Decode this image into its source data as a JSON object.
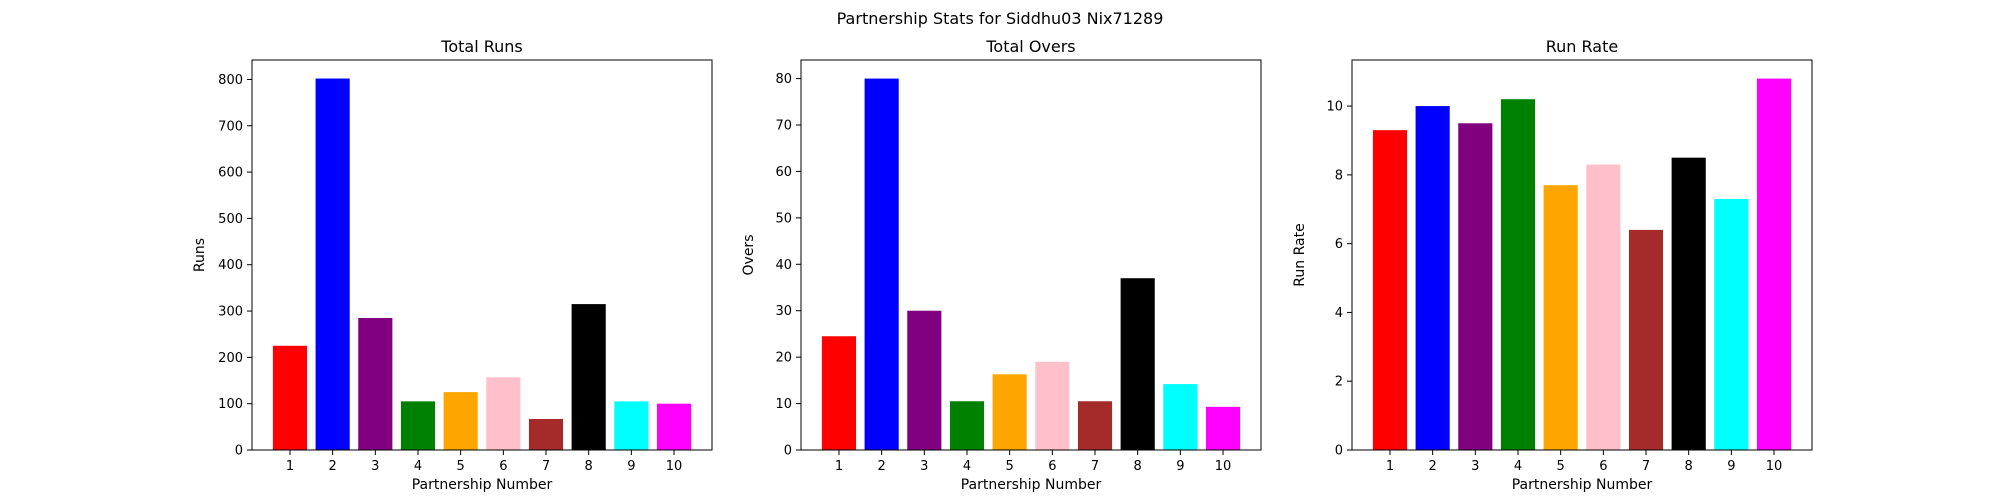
{
  "figure": {
    "suptitle": "Partnership Stats for Siddhu03 Nix71289"
  },
  "colors": [
    "#ff0000",
    "#0000ff",
    "#800080",
    "#008000",
    "#ffa500",
    "#ffc0cb",
    "#a52a2a",
    "#000000",
    "#00ffff",
    "#ff00ff"
  ],
  "chart_data": [
    {
      "type": "bar",
      "title": "Total Runs",
      "xlabel": "Partnership Number",
      "ylabel": "Runs",
      "categories": [
        "1",
        "2",
        "3",
        "4",
        "5",
        "6",
        "7",
        "8",
        "9",
        "10"
      ],
      "values": [
        225,
        802,
        285,
        105,
        125,
        157,
        67,
        315,
        105,
        100
      ],
      "ylim": [
        0,
        842
      ],
      "yticks": [
        0,
        100,
        200,
        300,
        400,
        500,
        600,
        700,
        800
      ],
      "grid": false
    },
    {
      "type": "bar",
      "title": "Total Overs",
      "xlabel": "Partnership Number",
      "ylabel": "Overs",
      "categories": [
        "1",
        "2",
        "3",
        "4",
        "5",
        "6",
        "7",
        "8",
        "9",
        "10"
      ],
      "values": [
        24.5,
        80,
        30,
        10.5,
        16.3,
        19,
        10.5,
        37,
        14.2,
        9.3
      ],
      "ylim": [
        0,
        84
      ],
      "yticks": [
        0,
        10,
        20,
        30,
        40,
        50,
        60,
        70,
        80
      ],
      "grid": false
    },
    {
      "type": "bar",
      "title": "Run Rate",
      "xlabel": "Partnership Number",
      "ylabel": "Run Rate",
      "categories": [
        "1",
        "2",
        "3",
        "4",
        "5",
        "6",
        "7",
        "8",
        "9",
        "10"
      ],
      "values": [
        9.3,
        10.0,
        9.5,
        10.2,
        7.7,
        8.3,
        6.4,
        8.5,
        7.3,
        10.8
      ],
      "ylim": [
        0,
        11.34
      ],
      "yticks": [
        0,
        2,
        4,
        6,
        8,
        10
      ],
      "grid": false
    }
  ]
}
